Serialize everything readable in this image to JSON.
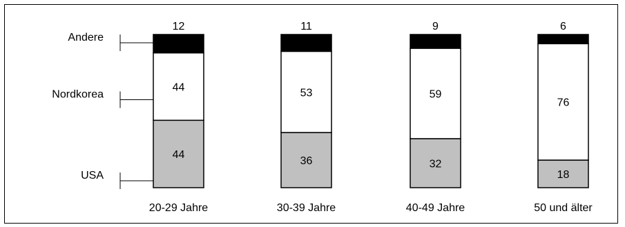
{
  "chart_data": {
    "type": "bar",
    "stacked": true,
    "categories": [
      "20-29 Jahre",
      "30-39 Jahre",
      "40-49 Jahre",
      "50 und älter"
    ],
    "series": [
      {
        "name": "USA",
        "values": [
          44,
          36,
          32,
          18
        ],
        "color": "#c0c0c0"
      },
      {
        "name": "Nordkorea",
        "values": [
          44,
          53,
          59,
          76
        ],
        "color": "#ffffff"
      },
      {
        "name": "Andere",
        "values": [
          12,
          11,
          9,
          6
        ],
        "color": "#000000"
      }
    ],
    "ylim": [
      0,
      100
    ],
    "grid": false,
    "legend": "left"
  }
}
